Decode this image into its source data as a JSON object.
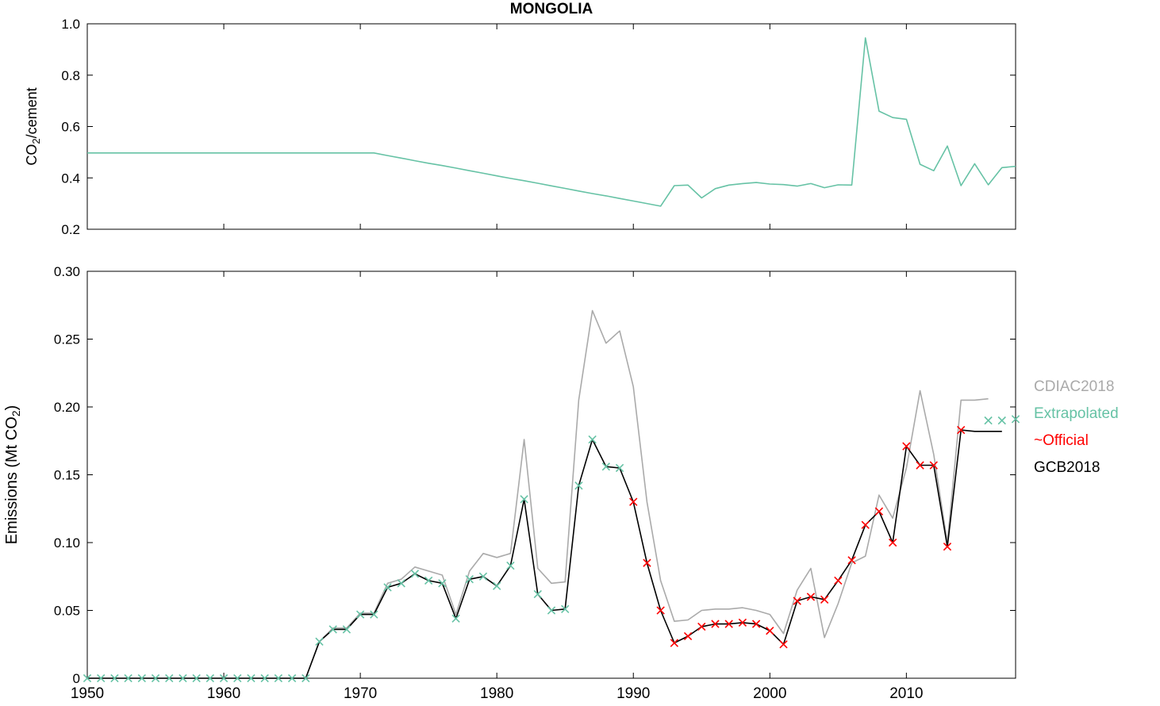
{
  "page": {
    "title": "MONGOLIA"
  },
  "legend": {
    "items": [
      {
        "label": "CDIAC2018",
        "color": "#aaaaaa"
      },
      {
        "label": "Extrapolated",
        "color": "#66c2a5"
      },
      {
        "label": "~Official",
        "color": "#ff0000"
      },
      {
        "label": "GCB2018",
        "color": "#000000"
      }
    ]
  },
  "chart_data": [
    {
      "id": "co2-cement-ratio",
      "type": "line",
      "title": "MONGOLIA",
      "ylabel": {
        "pre": "CO",
        "sub": "2",
        "post": "/cement"
      },
      "xlim": [
        1950,
        2018
      ],
      "ylim": [
        0.2,
        1.0
      ],
      "xticks": [
        1950,
        1960,
        1970,
        1980,
        1990,
        2000,
        2010
      ],
      "yticks": [
        "0.2",
        "0.4",
        "0.6",
        "0.8",
        "1.0"
      ],
      "grid": false,
      "legend_position": "none",
      "x": [
        1950,
        1951,
        1952,
        1953,
        1954,
        1955,
        1956,
        1957,
        1958,
        1959,
        1960,
        1961,
        1962,
        1963,
        1964,
        1965,
        1966,
        1967,
        1968,
        1969,
        1970,
        1971,
        1972,
        1973,
        1974,
        1975,
        1976,
        1977,
        1978,
        1979,
        1980,
        1981,
        1982,
        1983,
        1984,
        1985,
        1986,
        1987,
        1988,
        1989,
        1990,
        1991,
        1992,
        1993,
        1994,
        1995,
        1996,
        1997,
        1998,
        1999,
        2000,
        2001,
        2002,
        2003,
        2004,
        2005,
        2006,
        2007,
        2008,
        2009,
        2010,
        2011,
        2012,
        2013,
        2014,
        2015,
        2016,
        2017,
        2018
      ],
      "series": [
        {
          "name": "co2-per-cement",
          "color": "#66c2a5",
          "y": [
            0.497,
            0.497,
            0.497,
            0.497,
            0.497,
            0.497,
            0.497,
            0.497,
            0.497,
            0.497,
            0.497,
            0.497,
            0.497,
            0.497,
            0.497,
            0.497,
            0.497,
            0.497,
            0.497,
            0.497,
            0.497,
            0.497,
            0.487,
            0.477,
            0.467,
            0.457,
            0.448,
            0.438,
            0.428,
            0.418,
            0.408,
            0.398,
            0.389,
            0.379,
            0.369,
            0.359,
            0.349,
            0.339,
            0.33,
            0.32,
            0.31,
            0.3,
            0.29,
            0.37,
            0.372,
            0.322,
            0.358,
            0.372,
            0.378,
            0.382,
            0.376,
            0.374,
            0.368,
            0.378,
            0.362,
            0.373,
            0.372,
            0.945,
            0.66,
            0.635,
            0.628,
            0.453,
            0.428,
            0.524,
            0.37,
            0.455,
            0.373,
            0.44,
            0.445
          ]
        }
      ]
    },
    {
      "id": "emissions",
      "type": "line",
      "title": "",
      "ylabel": {
        "pre": "Emissions (Mt CO",
        "sub": "2",
        "post": ")"
      },
      "xlim": [
        1950,
        2018
      ],
      "ylim": [
        0,
        0.3
      ],
      "xticks": [
        1950,
        1960,
        1970,
        1980,
        1990,
        2000,
        2010
      ],
      "yticks": [
        "0",
        "0.05",
        "0.10",
        "0.15",
        "0.20",
        "0.25",
        "0.30"
      ],
      "grid": false,
      "legend_position": "right-outside",
      "x": [
        1950,
        1951,
        1952,
        1953,
        1954,
        1955,
        1956,
        1957,
        1958,
        1959,
        1960,
        1961,
        1962,
        1963,
        1964,
        1965,
        1966,
        1967,
        1968,
        1969,
        1970,
        1971,
        1972,
        1973,
        1974,
        1975,
        1976,
        1977,
        1978,
        1979,
        1980,
        1981,
        1982,
        1983,
        1984,
        1985,
        1986,
        1987,
        1988,
        1989,
        1990,
        1991,
        1992,
        1993,
        1994,
        1995,
        1996,
        1997,
        1998,
        1999,
        2000,
        2001,
        2002,
        2003,
        2004,
        2005,
        2006,
        2007,
        2008,
        2009,
        2010,
        2011,
        2012,
        2013,
        2014,
        2015,
        2016,
        2017,
        2018
      ],
      "series": [
        {
          "name": "cdiac2018",
          "color": "#aaaaaa",
          "y": [
            0,
            0,
            0,
            0,
            0,
            0,
            0,
            0,
            0,
            0,
            0,
            0,
            0,
            0,
            0,
            0,
            0,
            0.027,
            0.037,
            0.037,
            0.048,
            0.048,
            0.07,
            0.073,
            0.082,
            0.079,
            0.076,
            0.047,
            0.079,
            0.092,
            0.089,
            0.092,
            0.176,
            0.081,
            0.07,
            0.071,
            0.205,
            0.271,
            0.247,
            0.256,
            0.215,
            0.13,
            0.072,
            0.042,
            0.043,
            0.05,
            0.051,
            0.051,
            0.052,
            0.05,
            0.047,
            0.033,
            0.065,
            0.081,
            0.03,
            0.055,
            0.085,
            0.09,
            0.135,
            0.118,
            0.155,
            0.212,
            0.165,
            0.1,
            0.205,
            0.205,
            0.206,
            null,
            null
          ]
        },
        {
          "name": "gcb2018",
          "color": "#000000",
          "y": [
            0,
            0,
            0,
            0,
            0,
            0,
            0,
            0,
            0,
            0,
            0,
            0,
            0,
            0,
            0,
            0,
            0,
            0.027,
            0.036,
            0.036,
            0.047,
            0.047,
            0.067,
            0.07,
            0.077,
            0.072,
            0.07,
            0.044,
            0.073,
            0.075,
            0.068,
            0.083,
            0.132,
            0.062,
            0.05,
            0.051,
            0.142,
            0.176,
            0.156,
            0.155,
            0.13,
            0.085,
            0.05,
            0.026,
            0.031,
            0.038,
            0.04,
            0.04,
            0.041,
            0.04,
            0.035,
            0.025,
            0.057,
            0.06,
            0.058,
            0.072,
            0.087,
            0.113,
            0.123,
            0.1,
            0.171,
            0.157,
            0.157,
            0.097,
            0.183,
            0.182,
            0.182,
            0.182,
            null
          ]
        }
      ],
      "marker_series": [
        {
          "name": "extrapolated",
          "marker": "x",
          "color": "#66c2a5",
          "x": [
            1950,
            1951,
            1952,
            1953,
            1954,
            1955,
            1956,
            1957,
            1958,
            1959,
            1960,
            1961,
            1962,
            1963,
            1964,
            1965,
            1966,
            1967,
            1968,
            1969,
            1970,
            1971,
            1972,
            1973,
            1974,
            1975,
            1976,
            1977,
            1978,
            1979,
            1980,
            1981,
            1982,
            1983,
            1984,
            1985,
            1986,
            1987,
            1988,
            1989,
            2016,
            2017,
            2018
          ],
          "y": [
            0,
            0,
            0,
            0,
            0,
            0,
            0,
            0,
            0,
            0,
            0,
            0,
            0,
            0,
            0,
            0,
            0,
            0.027,
            0.036,
            0.036,
            0.047,
            0.047,
            0.067,
            0.07,
            0.077,
            0.072,
            0.07,
            0.044,
            0.073,
            0.075,
            0.068,
            0.083,
            0.132,
            0.062,
            0.05,
            0.051,
            0.142,
            0.176,
            0.156,
            0.155,
            0.19,
            0.19,
            0.191
          ]
        },
        {
          "name": "official",
          "marker": "x",
          "color": "#ff0000",
          "x": [
            1990,
            1991,
            1992,
            1993,
            1994,
            1995,
            1996,
            1997,
            1998,
            1999,
            2000,
            2001,
            2002,
            2003,
            2004,
            2005,
            2006,
            2007,
            2008,
            2009,
            2010,
            2011,
            2012,
            2013,
            2014
          ],
          "y": [
            0.13,
            0.085,
            0.05,
            0.026,
            0.031,
            0.038,
            0.04,
            0.04,
            0.041,
            0.04,
            0.035,
            0.025,
            0.057,
            0.06,
            0.058,
            0.072,
            0.087,
            0.113,
            0.123,
            0.1,
            0.171,
            0.157,
            0.157,
            0.097,
            0.183
          ]
        }
      ]
    }
  ]
}
